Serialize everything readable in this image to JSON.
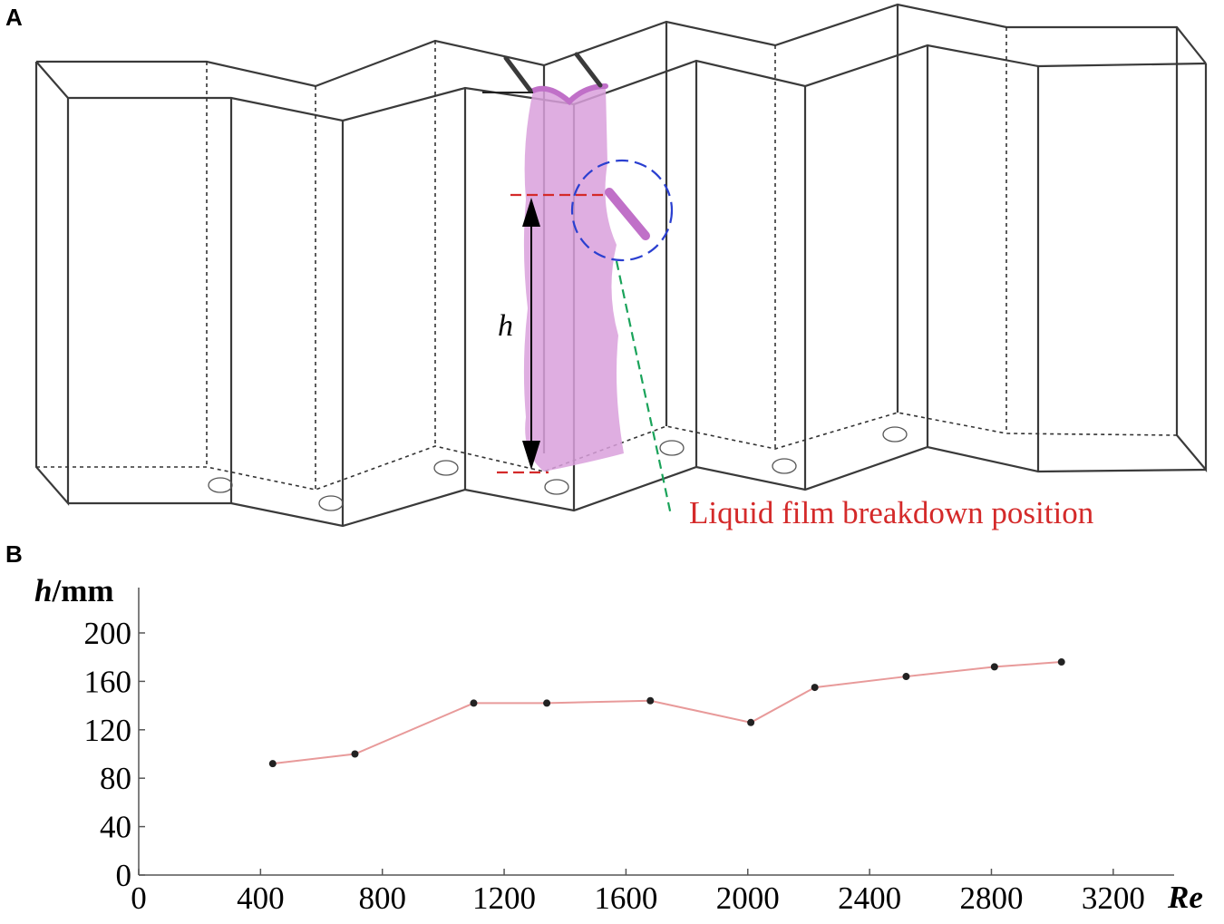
{
  "panels": {
    "a_label": "A",
    "b_label": "B"
  },
  "diagram": {
    "height_symbol": "h",
    "breakdown_label": "Liquid film breakdown position",
    "colors": {
      "structure": "#3a3a3a",
      "film": "#d9a0dc",
      "film_edge": "#c070c8",
      "reference_line": "#d42a2a",
      "circle": "#2a3fd0",
      "leader": "#1aa35a",
      "label": "#d42a2a"
    }
  },
  "chart_data": {
    "type": "line",
    "title": "",
    "ylabel_symbol": "h",
    "ylabel_unit": "/mm",
    "xlabel": "Re",
    "x": [
      440,
      710,
      1100,
      1340,
      1680,
      2010,
      2220,
      2520,
      2810,
      3030
    ],
    "y": [
      92,
      100,
      142,
      142,
      144,
      126,
      155,
      164,
      172,
      176
    ],
    "xlim": [
      0,
      3400
    ],
    "ylim": [
      0,
      200
    ],
    "xticks": [
      0,
      400,
      800,
      1200,
      1600,
      2000,
      2400,
      2800,
      3200
    ],
    "yticks": [
      0,
      40,
      80,
      120,
      160,
      200
    ],
    "line_color": "#e89a9a",
    "marker_color": "#222222",
    "grid": false
  }
}
